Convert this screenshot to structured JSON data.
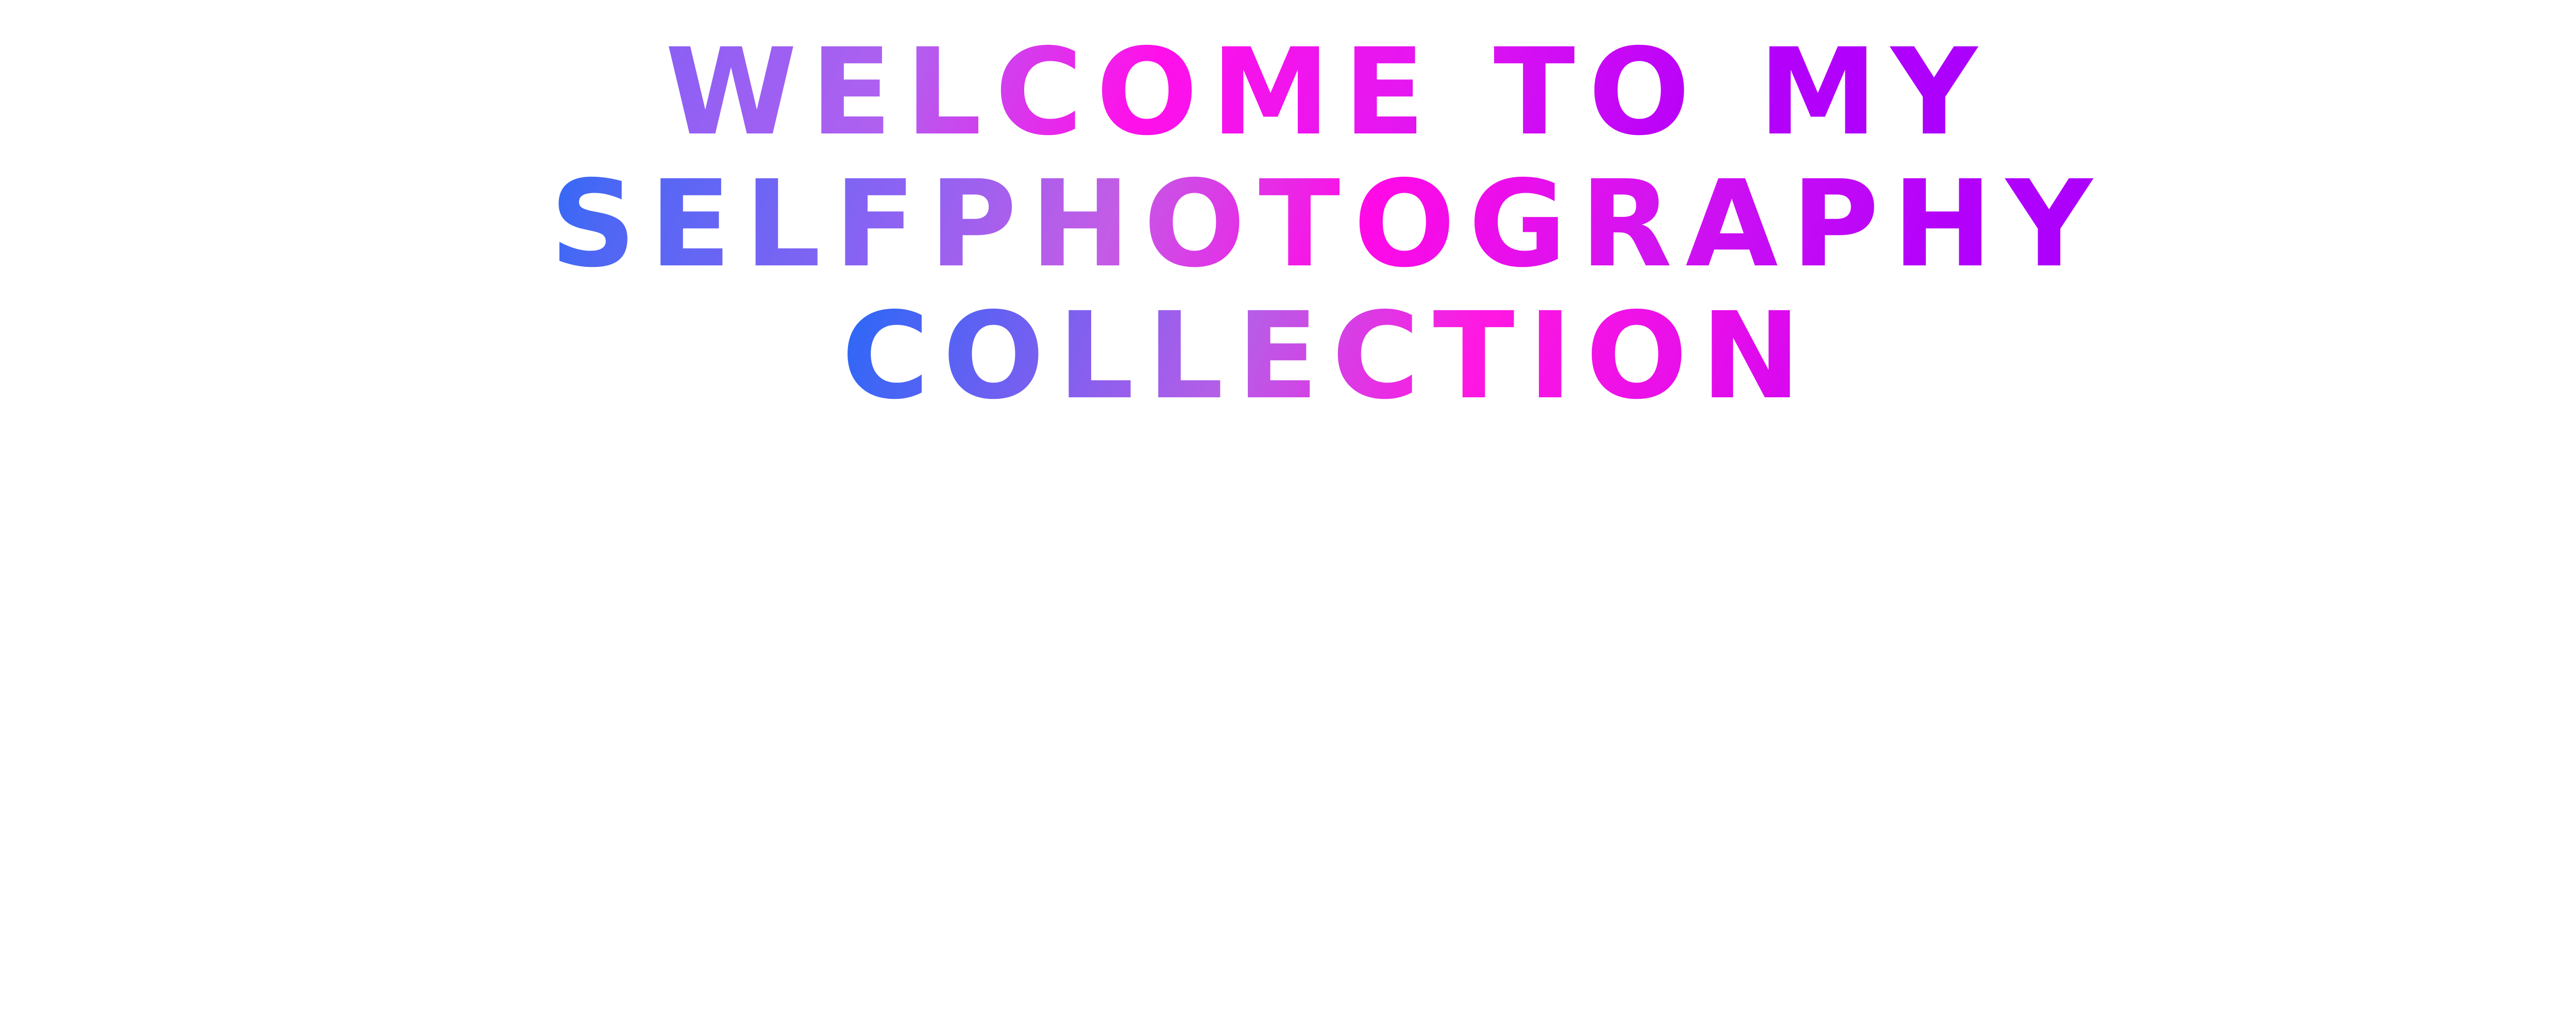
{
  "hero": {
    "lines": [
      "WELCOME TO MY",
      "SELFPHOTOGRAPHY",
      "COLLECTION"
    ]
  },
  "colors": {
    "background": "#ffffff",
    "gradient_blue": "#0a6cf9",
    "gradient_purple": "#8a63f3",
    "gradient_magenta": "#ff0ae6",
    "gradient_violet": "#a600ff"
  }
}
